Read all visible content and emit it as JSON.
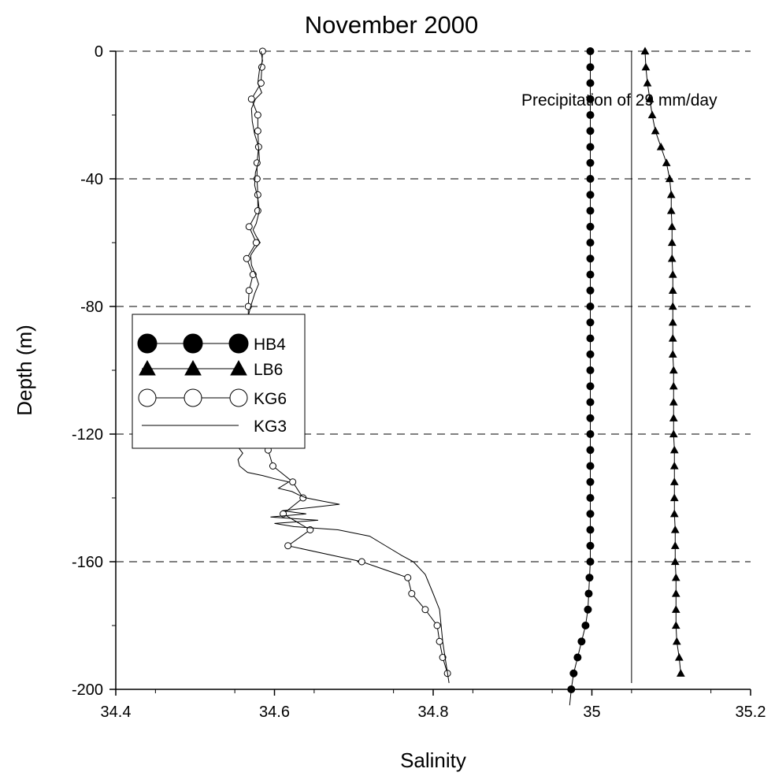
{
  "chart_data": {
    "type": "line",
    "title": "November 2000",
    "xlabel": "Salinity",
    "ylabel": "Depth (m)",
    "xlim": [
      34.4,
      35.2
    ],
    "ylim": [
      -200,
      0
    ],
    "xticks": [
      34.4,
      34.6,
      34.8,
      35,
      35.2
    ],
    "xtick_labels": [
      "34.4",
      "34.6",
      "34.8",
      "35",
      "35.2"
    ],
    "yticks": [
      0,
      -40,
      -80,
      -120,
      -160,
      -200
    ],
    "ytick_labels": [
      "0",
      "-40",
      "-80",
      "-120",
      "-160",
      "-200"
    ],
    "grid": "horizontal dashed at major y ticks",
    "legend_position": "left-middle",
    "annotation": {
      "text": "Precipitation of 29 mm/day",
      "x": 35.05
    },
    "series": [
      {
        "name": "HB4",
        "marker": "filled-circle",
        "x": [
          34.998,
          34.998,
          34.998,
          34.998,
          34.998,
          34.998,
          34.998,
          34.998,
          34.998,
          34.998,
          34.998,
          34.998,
          34.998,
          34.998,
          34.998,
          34.998,
          34.998,
          34.998,
          34.998,
          34.998,
          34.998,
          34.998,
          34.998,
          34.998,
          34.998,
          34.998,
          34.998,
          34.998,
          34.998,
          34.998,
          34.998,
          34.998,
          34.998,
          34.997,
          34.996,
          34.995,
          34.992,
          34.987,
          34.982,
          34.977,
          34.974,
          34.972
        ],
        "y": [
          0,
          -5,
          -10,
          -15,
          -20,
          -25,
          -30,
          -35,
          -40,
          -45,
          -50,
          -55,
          -60,
          -65,
          -70,
          -75,
          -80,
          -85,
          -90,
          -95,
          -100,
          -105,
          -110,
          -115,
          -120,
          -125,
          -130,
          -135,
          -140,
          -145,
          -150,
          -155,
          -160,
          -165,
          -170,
          -175,
          -180,
          -185,
          -190,
          -195,
          -200,
          -205
        ]
      },
      {
        "name": "LB6",
        "marker": "filled-triangle",
        "x": [
          35.067,
          35.068,
          35.07,
          35.073,
          35.076,
          35.08,
          35.087,
          35.094,
          35.098,
          35.1,
          35.1,
          35.101,
          35.101,
          35.101,
          35.102,
          35.102,
          35.102,
          35.102,
          35.102,
          35.102,
          35.103,
          35.103,
          35.103,
          35.103,
          35.103,
          35.104,
          35.104,
          35.104,
          35.104,
          35.104,
          35.105,
          35.105,
          35.105,
          35.106,
          35.106,
          35.106,
          35.106,
          35.107,
          35.11,
          35.112
        ],
        "y": [
          0,
          -5,
          -10,
          -15,
          -20,
          -25,
          -30,
          -35,
          -40,
          -45,
          -50,
          -55,
          -60,
          -65,
          -70,
          -75,
          -80,
          -85,
          -90,
          -95,
          -100,
          -105,
          -110,
          -115,
          -120,
          -125,
          -130,
          -135,
          -140,
          -145,
          -150,
          -155,
          -160,
          -165,
          -170,
          -175,
          -180,
          -185,
          -190,
          -195
        ]
      },
      {
        "name": "KG6",
        "marker": "open-circle",
        "x": [
          34.585,
          34.584,
          34.583,
          34.571,
          34.579,
          34.579,
          34.58,
          34.578,
          34.578,
          34.579,
          34.579,
          34.568,
          34.577,
          34.565,
          34.573,
          34.568,
          34.567,
          34.567,
          34.563,
          34.555,
          34.556,
          34.558,
          34.557,
          34.553,
          34.564,
          34.592,
          34.598,
          34.623,
          34.636,
          34.611,
          34.645,
          34.617,
          34.71,
          34.768,
          34.773,
          34.79,
          34.805,
          34.808,
          34.812,
          34.818
        ],
        "y": [
          0,
          -5,
          -10,
          -15,
          -20,
          -25,
          -30,
          -35,
          -40,
          -45,
          -50,
          -55,
          -60,
          -65,
          -70,
          -75,
          -80,
          -85,
          -90,
          -95,
          -100,
          -105,
          -110,
          -115,
          -120,
          -125,
          -130,
          -135,
          -140,
          -145,
          -150,
          -155,
          -160,
          -165,
          -170,
          -175,
          -180,
          -185,
          -190,
          -195
        ]
      },
      {
        "name": "KG3",
        "marker": "none",
        "x": [
          34.583,
          34.585,
          34.581,
          34.579,
          34.584,
          34.576,
          34.571,
          34.572,
          34.575,
          34.58,
          34.581,
          34.576,
          34.575,
          34.579,
          34.581,
          34.577,
          34.573,
          34.577,
          34.582,
          34.575,
          34.57,
          34.571,
          34.576,
          34.58,
          34.575,
          34.57,
          34.567,
          34.568,
          34.573,
          34.574,
          34.569,
          34.564,
          34.567,
          34.572,
          34.57,
          34.564,
          34.56,
          34.564,
          34.568,
          34.562,
          34.556,
          34.546,
          34.552,
          34.559,
          34.555,
          34.548,
          34.554,
          34.56,
          34.554,
          34.556,
          34.566,
          34.585,
          34.6,
          34.618,
          34.605,
          34.622,
          34.63,
          34.64,
          34.66,
          34.682,
          34.61,
          34.64,
          34.595,
          34.655,
          34.6,
          34.625,
          34.68,
          34.72,
          34.74,
          34.76,
          34.775,
          34.79,
          34.8,
          34.808,
          34.81,
          34.812,
          34.815,
          34.82
        ],
        "y": [
          0,
          -3,
          -6,
          -10,
          -13,
          -15,
          -18,
          -22,
          -26,
          -30,
          -34,
          -38,
          -42,
          -46,
          -50,
          -54,
          -56,
          -58,
          -60,
          -62,
          -64,
          -67,
          -70,
          -73,
          -76,
          -80,
          -83,
          -86,
          -88,
          -90,
          -92,
          -94,
          -96,
          -98,
          -100,
          -102,
          -104,
          -106,
          -108,
          -110,
          -112,
          -114,
          -116,
          -118,
          -120,
          -122,
          -124,
          -126,
          -128,
          -130,
          -132,
          -133,
          -134,
          -135,
          -137,
          -138,
          -139,
          -140,
          -141,
          -142,
          -144,
          -145,
          -146,
          -147,
          -148,
          -149,
          -150,
          -152,
          -155,
          -158,
          -160,
          -164,
          -170,
          -175,
          -180,
          -185,
          -190,
          -198
        ]
      }
    ]
  }
}
